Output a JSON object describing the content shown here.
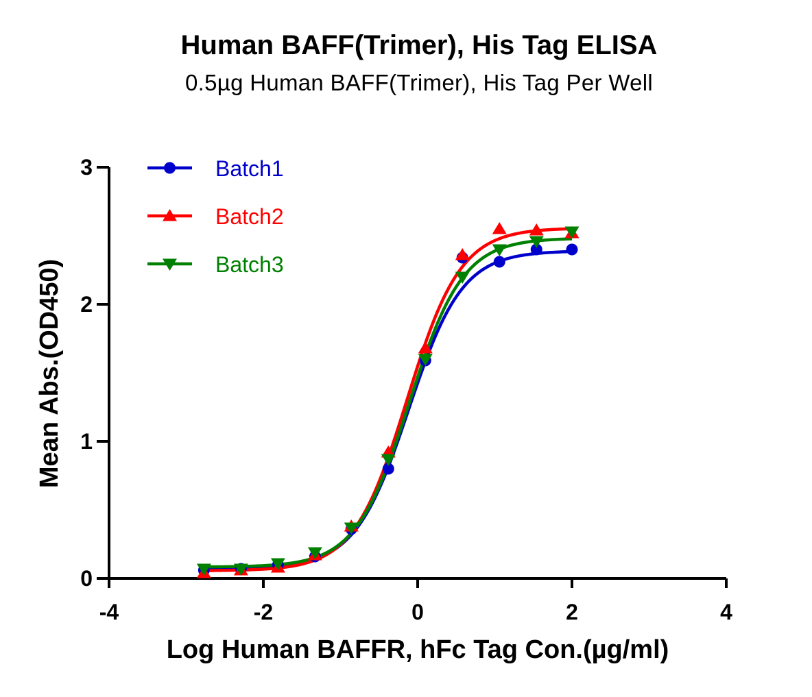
{
  "chart_data": {
    "type": "scatter",
    "title": "Human BAFF(Trimer), His Tag ELISA",
    "subtitle": "0.5µg Human BAFF(Trimer), His Tag Per Well",
    "xlabel": "Log Human BAFFR, hFc Tag Con.(µg/ml)",
    "ylabel": "Mean Abs.(OD450)",
    "xlim": [
      -4,
      4
    ],
    "ylim": [
      0,
      3
    ],
    "xticks": [
      -4,
      -2,
      0,
      2,
      4
    ],
    "yticks": [
      0,
      1,
      2,
      3
    ],
    "xtick_labels": [
      "-4",
      "-2",
      "0",
      "2",
      "4"
    ],
    "ytick_labels": [
      "0",
      "1",
      "2",
      "3"
    ],
    "grid": false,
    "legend_position": "top-left",
    "curve": "four-parameter logistic fit",
    "series": [
      {
        "name": "Batch1",
        "color": "#0000CC",
        "marker": "circle",
        "x": [
          -2.77,
          -2.29,
          -1.81,
          -1.33,
          -0.86,
          -0.38,
          0.1,
          0.58,
          1.06,
          1.54,
          2.0
        ],
        "y": [
          0.06,
          0.07,
          0.1,
          0.16,
          0.36,
          0.8,
          1.59,
          2.34,
          2.31,
          2.4,
          2.4
        ]
      },
      {
        "name": "Batch2",
        "color": "#FF0000",
        "marker": "triangle-up",
        "x": [
          -2.77,
          -2.29,
          -1.81,
          -1.33,
          -0.86,
          -0.38,
          0.1,
          0.58,
          1.06,
          1.54,
          2.0
        ],
        "y": [
          0.04,
          0.06,
          0.08,
          0.17,
          0.38,
          0.92,
          1.68,
          2.36,
          2.55,
          2.54,
          2.52
        ]
      },
      {
        "name": "Batch3",
        "color": "#008000",
        "marker": "triangle-down",
        "x": [
          -2.77,
          -2.29,
          -1.81,
          -1.33,
          -0.86,
          -0.38,
          0.1,
          0.58,
          1.06,
          1.54,
          2.0
        ],
        "y": [
          0.07,
          0.07,
          0.11,
          0.19,
          0.37,
          0.87,
          1.6,
          2.2,
          2.4,
          2.46,
          2.53
        ]
      }
    ]
  }
}
